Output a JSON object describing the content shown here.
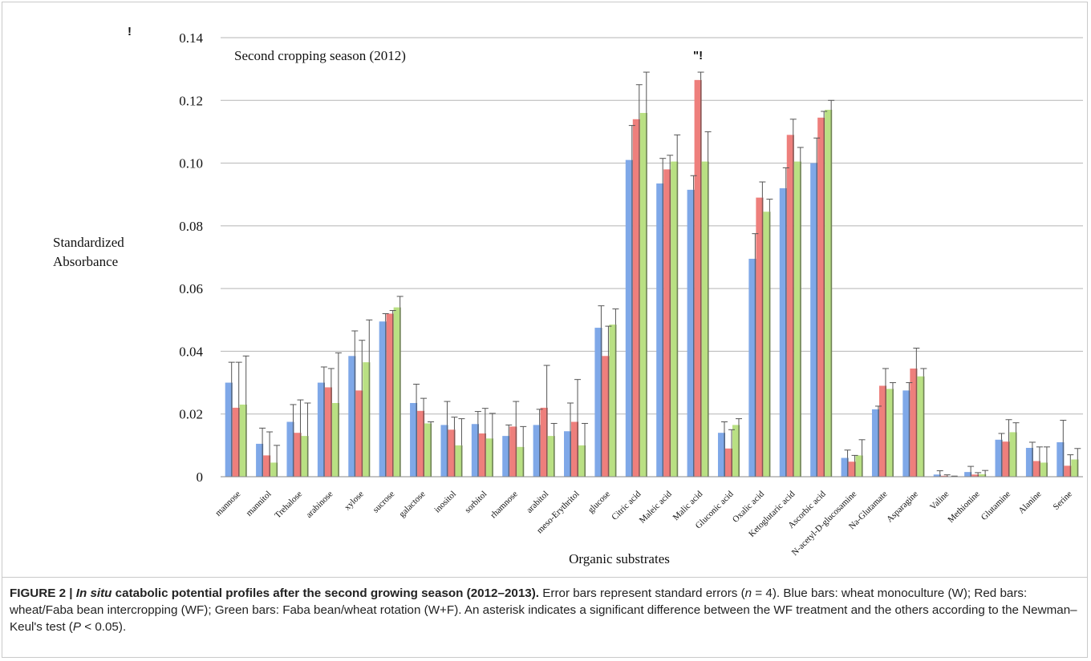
{
  "chart_data": {
    "type": "bar",
    "title": "Second cropping season (2012)",
    "ylabel_line1": "Standardized",
    "ylabel_line2": "Absorbance",
    "xlabel": "Organic substrates",
    "ylim": [
      0,
      0.14
    ],
    "yticks": [
      "0",
      "0.02",
      "0.04",
      "0.06",
      "0.08",
      "0.10",
      "0.12",
      "0.14"
    ],
    "grid": "horizontal",
    "corner_mark": "!",
    "significance_mark": "\"!",
    "significance_index": 15,
    "categories": [
      "mannose",
      "mannitol",
      "Trehalose",
      "arabinose",
      "xylose",
      "sucrose",
      "galactose",
      "inositol",
      "sorbitol",
      "rhamnose",
      "arabitol",
      "meso-Erythritol",
      "glucose",
      "Citric acid",
      "Maleic acid",
      "Malic acid",
      "Gluconic acid",
      "Oxalic acid",
      "Ketoglutaric acid",
      "Ascorbic acid",
      "N-acetyl-D-glucosamine",
      "Na-Glutamate",
      "Asparagine",
      "Valine",
      "Methionine",
      "Glutamine",
      "Alanine",
      "Serine"
    ],
    "series": [
      {
        "color": "#7fa8e8",
        "values": [
          0.03,
          0.0105,
          0.0175,
          0.03,
          0.0385,
          0.0495,
          0.0235,
          0.0165,
          0.0168,
          0.013,
          0.0165,
          0.0145,
          0.0475,
          0.101,
          0.0935,
          0.0915,
          0.014,
          0.0695,
          0.092,
          0.1,
          0.006,
          0.0215,
          0.0275,
          0.0007,
          0.0015,
          0.0118,
          0.0092,
          0.011
        ],
        "errors": [
          0.0065,
          0.005,
          0.0055,
          0.005,
          0.008,
          0.0025,
          0.006,
          0.0075,
          0.004,
          0.0035,
          0.005,
          0.009,
          0.007,
          0.011,
          0.008,
          0.0045,
          0.0035,
          0.008,
          0.0065,
          0.008,
          0.0025,
          0.001,
          0.0025,
          0.0012,
          0.0018,
          0.002,
          0.0018,
          0.007
        ]
      },
      {
        "color": "#ee7f7c",
        "values": [
          0.022,
          0.0068,
          0.014,
          0.0285,
          0.0275,
          0.052,
          0.021,
          0.015,
          0.0138,
          0.016,
          0.022,
          0.0175,
          0.0385,
          0.114,
          0.098,
          0.1265,
          0.009,
          0.089,
          0.109,
          0.1145,
          0.0048,
          0.029,
          0.0345,
          0.0003,
          0.0007,
          0.0112,
          0.005,
          0.0035
        ],
        "errors": [
          0.0145,
          0.0075,
          0.0105,
          0.006,
          0.016,
          0.001,
          0.004,
          0.004,
          0.008,
          0.008,
          0.0135,
          0.0135,
          0.0095,
          0.011,
          0.0045,
          0.0025,
          0.006,
          0.005,
          0.005,
          0.002,
          0.002,
          0.0055,
          0.0065,
          0.0003,
          0.0006,
          0.007,
          0.0045,
          0.0035
        ]
      },
      {
        "color": "#b9e083",
        "values": [
          0.023,
          0.0045,
          0.013,
          0.0235,
          0.0365,
          0.054,
          0.017,
          0.01,
          0.0122,
          0.0095,
          0.013,
          0.01,
          0.0485,
          0.116,
          0.1005,
          0.1005,
          0.0165,
          0.0845,
          0.1005,
          0.117,
          0.0068,
          0.028,
          0.032,
          0.0001,
          0.0008,
          0.0142,
          0.0045,
          0.0055
        ],
        "errors": [
          0.0155,
          0.0055,
          0.0105,
          0.016,
          0.0135,
          0.0035,
          0.0005,
          0.0085,
          0.008,
          0.0065,
          0.004,
          0.007,
          0.005,
          0.013,
          0.0085,
          0.0095,
          0.002,
          0.004,
          0.0045,
          0.003,
          0.005,
          0.002,
          0.0025,
          0.0001,
          0.0012,
          0.003,
          0.005,
          0.0035
        ]
      }
    ]
  },
  "caption": {
    "figure_label": "FIGURE 2 | ",
    "title_italic": "In situ",
    "title_rest": " catabolic potential profiles after the second growing season (2012–2013).",
    "text_before_n": " Error bars represent standard errors (",
    "n_symbol": "n",
    "text_after_n": " = 4). Blue bars: wheat monoculture (W); Red bars: wheat/Faba bean intercropping (WF); Green bars: Faba bean/wheat rotation (W+F). An asterisk indicates a significant difference between the WF treatment and the others according to the Newman–Keul's test (",
    "p_symbol": "P",
    "text_after_p": " < 0.05)."
  }
}
